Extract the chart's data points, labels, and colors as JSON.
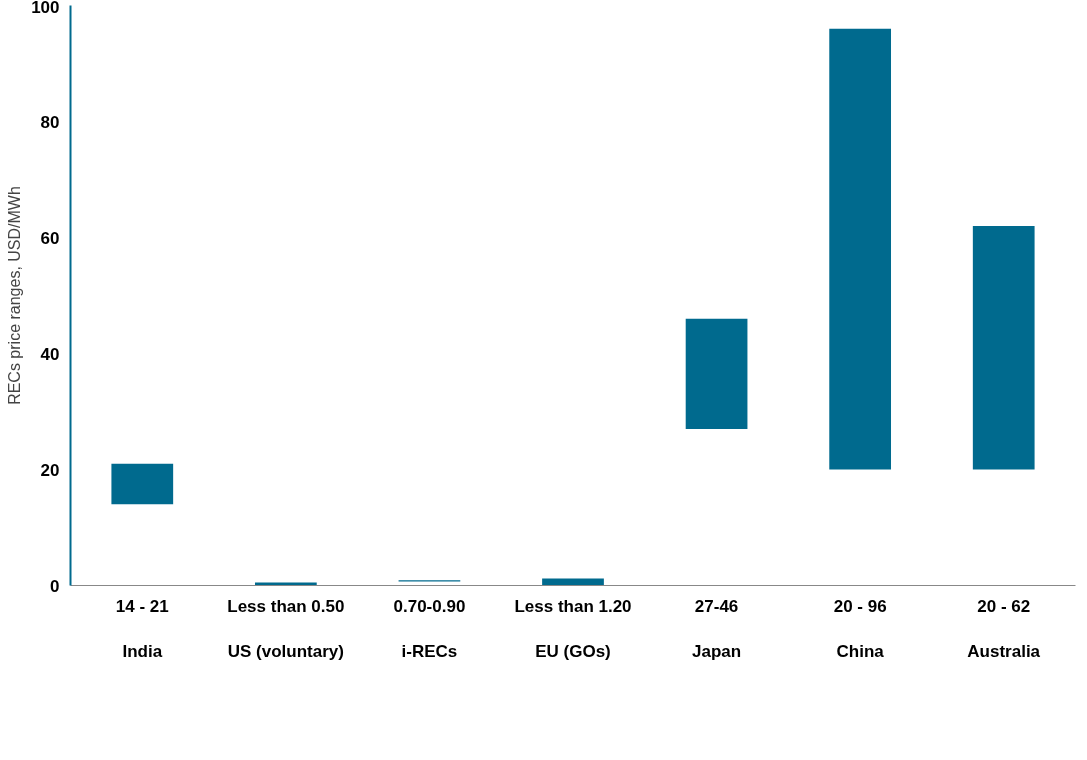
{
  "chart_data": {
    "type": "bar",
    "ylabel": "RECs price ranges, USD/MWh",
    "categories": [
      "India",
      "US (voluntary)",
      "i-RECs",
      "EU (GOs)",
      "Japan",
      "China",
      "Australia"
    ],
    "base": [
      14,
      0,
      0.7,
      0,
      27,
      20,
      20
    ],
    "values": [
      7,
      0.5,
      0.2,
      1.2,
      19,
      76,
      42
    ],
    "annotations": [
      "14 - 21",
      "Less than 0.50",
      "0.70-0.90",
      "Less than 1.20",
      "27-46",
      "20 - 96",
      "20 - 62"
    ],
    "color": "#006a8e",
    "ylim": [
      0,
      100
    ],
    "yticks": [
      0,
      20,
      40,
      60,
      80,
      100
    ],
    "grid": false
  }
}
